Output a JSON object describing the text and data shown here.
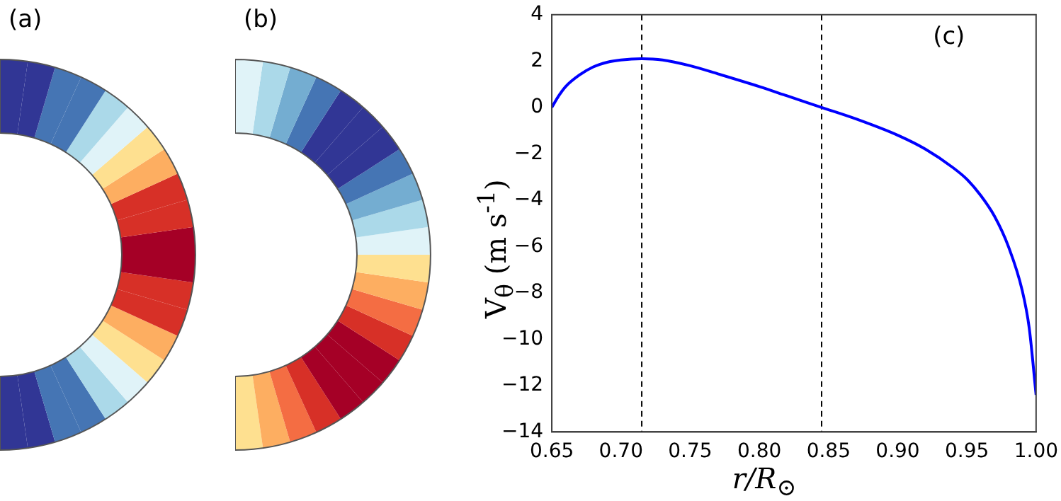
{
  "chart_data": [
    {
      "type": "other",
      "annotations": [
        "(a)"
      ]
    },
    {
      "type": "other",
      "annotations": [
        "(b)"
      ]
    },
    {
      "type": "line",
      "xlabel": "r/R$_{⊙}$",
      "ylabel": "V$_{θ}$ (m s$^{-1}$)",
      "annotations": [
        "(c)"
      ],
      "series": [
        {
          "color": "#0000ff",
          "x": [
            0.65,
            0.655,
            0.66,
            0.67,
            0.68,
            0.69,
            0.7,
            0.715,
            0.73,
            0.75,
            0.77,
            0.8,
            0.82,
            0.845,
            0.87,
            0.9,
            0.92,
            0.94,
            0.95,
            0.96,
            0.97,
            0.98,
            0.99,
            0.995,
            1.0
          ],
          "values": [
            0,
            0.5,
            0.9,
            1.4,
            1.75,
            1.95,
            2.05,
            2.1,
            2.05,
            1.8,
            1.45,
            0.9,
            0.5,
            0,
            -0.5,
            -1.2,
            -1.8,
            -2.6,
            -3.1,
            -3.8,
            -4.7,
            -6.0,
            -7.9,
            -9.5,
            -12.4
          ]
        }
      ],
      "xlim": [
        0.65,
        1.0
      ],
      "ylim": [
        -14,
        4
      ],
      "xticks": [
        {
          "value": 0.65,
          "label": "0.65"
        },
        {
          "value": 0.7,
          "label": "0.70"
        },
        {
          "value": 0.75,
          "label": "0.75"
        },
        {
          "value": 0.8,
          "label": "0.80"
        },
        {
          "value": 0.85,
          "label": "0.85"
        },
        {
          "value": 0.9,
          "label": "0.90"
        },
        {
          "value": 0.95,
          "label": "0.95"
        },
        {
          "value": 1.0,
          "label": "1.00"
        }
      ],
      "yticks": [
        -14,
        -12,
        -10,
        -8,
        -6,
        -4,
        -2,
        0,
        2,
        4
      ],
      "ref_lines": [
        {
          "axis": "x",
          "value": 0.715,
          "color": "#000000",
          "line_style": "dashed"
        },
        {
          "axis": "x",
          "value": 0.845,
          "color": "#000000",
          "line_style": "dashed"
        }
      ],
      "grid": false,
      "legend": false,
      "marker": "none",
      "line_style": "solid"
    }
  ]
}
